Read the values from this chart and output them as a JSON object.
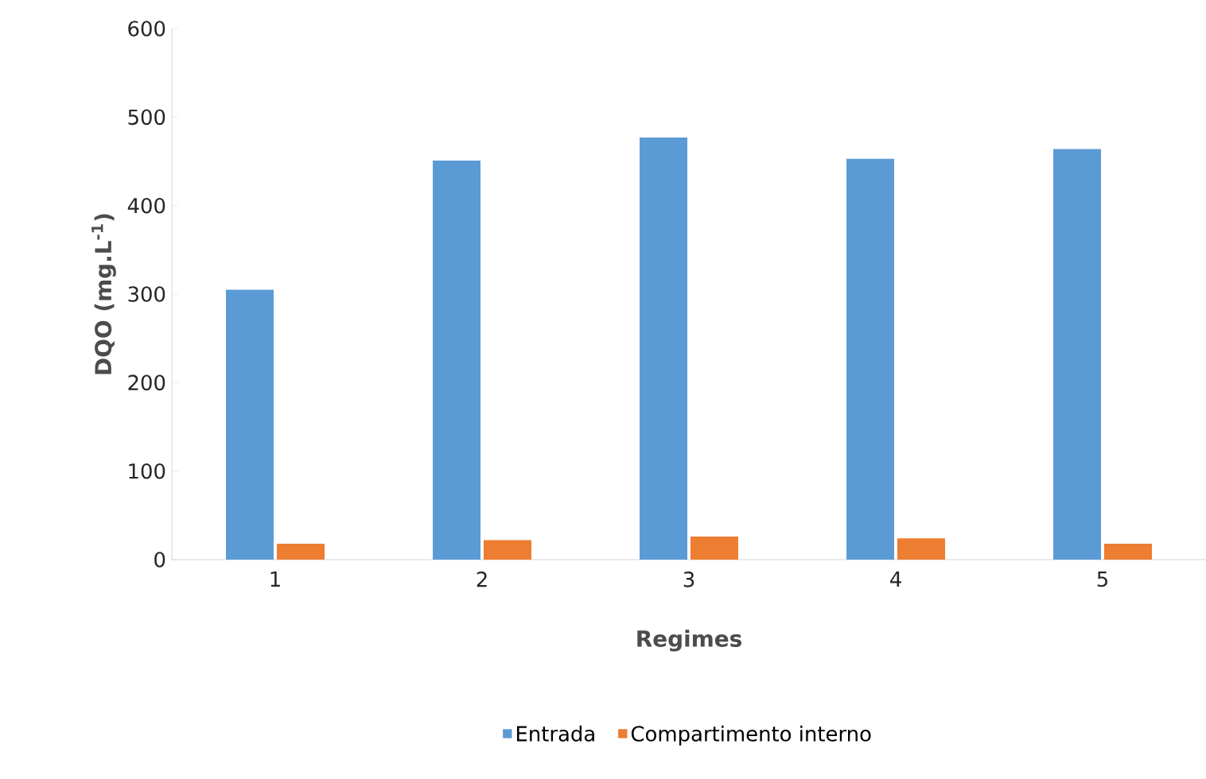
{
  "chart_data": {
    "type": "bar",
    "xlabel": "Regimes",
    "ylabel": "DQO (mg.L$^{-1}$)",
    "categories": [
      "1",
      "2",
      "3",
      "4",
      "5"
    ],
    "series": [
      {
        "name": "Entrada",
        "color": "#5b9bd5",
        "values": [
          305,
          451,
          477,
          453,
          464
        ]
      },
      {
        "name": "Compartimento interno",
        "color": "#ed7d31",
        "values": [
          18,
          22,
          26,
          24,
          18
        ]
      }
    ],
    "ylim": [
      0,
      600
    ],
    "yticks": [
      0,
      100,
      200,
      300,
      400,
      500,
      600
    ],
    "legend": "bottom",
    "grid": false
  }
}
